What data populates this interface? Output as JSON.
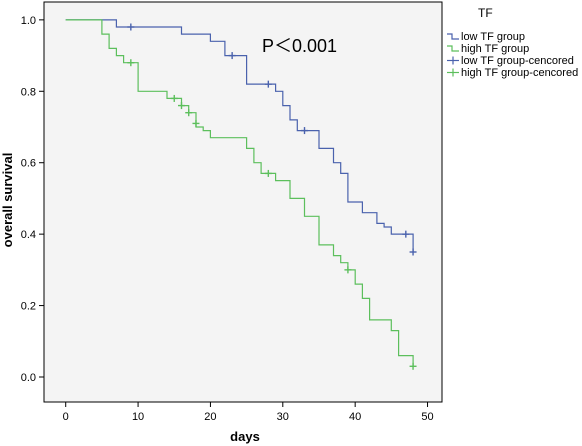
{
  "chart_data": {
    "type": "line",
    "step": true,
    "xlabel": "days",
    "ylabel": "overall survival",
    "xlim": [
      -3,
      52
    ],
    "ylim": [
      -0.07,
      1.05
    ],
    "xticks": [
      0,
      10,
      20,
      30,
      40,
      50
    ],
    "yticks": [
      0.0,
      0.2,
      0.4,
      0.6,
      0.8,
      1.0
    ],
    "ytick_labels": [
      "0.0",
      "0.2",
      "0.4",
      "0.6",
      "0.8",
      "1.0"
    ],
    "annotation": "P＜0.001",
    "legend": {
      "title": "TF",
      "placement": "top-right-outside",
      "entries": [
        "low TF group",
        "high TF group",
        "low TF group-cencored",
        "high TF group-cencored"
      ]
    },
    "series": [
      {
        "name": "low TF group",
        "color": "#4a62ad",
        "points": [
          [
            0,
            1.0
          ],
          [
            7,
            1.0
          ],
          [
            7,
            0.98
          ],
          [
            16,
            0.98
          ],
          [
            16,
            0.96
          ],
          [
            20,
            0.96
          ],
          [
            20,
            0.94
          ],
          [
            22,
            0.94
          ],
          [
            22,
            0.9
          ],
          [
            25,
            0.9
          ],
          [
            25,
            0.82
          ],
          [
            29,
            0.82
          ],
          [
            29,
            0.8
          ],
          [
            30,
            0.8
          ],
          [
            30,
            0.76
          ],
          [
            31,
            0.76
          ],
          [
            31,
            0.72
          ],
          [
            32,
            0.72
          ],
          [
            32,
            0.69
          ],
          [
            35,
            0.69
          ],
          [
            35,
            0.64
          ],
          [
            37,
            0.64
          ],
          [
            37,
            0.6
          ],
          [
            38,
            0.6
          ],
          [
            38,
            0.57
          ],
          [
            39,
            0.57
          ],
          [
            39,
            0.49
          ],
          [
            41,
            0.49
          ],
          [
            41,
            0.46
          ],
          [
            43,
            0.46
          ],
          [
            43,
            0.43
          ],
          [
            44,
            0.43
          ],
          [
            44,
            0.42
          ],
          [
            45,
            0.42
          ],
          [
            45,
            0.4
          ],
          [
            48,
            0.4
          ],
          [
            48,
            0.35
          ]
        ],
        "censored": [
          [
            9,
            0.98
          ],
          [
            23,
            0.9
          ],
          [
            28,
            0.82
          ],
          [
            33,
            0.69
          ],
          [
            47,
            0.4
          ],
          [
            48,
            0.35
          ]
        ]
      },
      {
        "name": "high TF group",
        "color": "#5cbf5c",
        "points": [
          [
            0,
            1.0
          ],
          [
            5,
            1.0
          ],
          [
            5,
            0.96
          ],
          [
            6,
            0.96
          ],
          [
            6,
            0.92
          ],
          [
            7,
            0.92
          ],
          [
            7,
            0.9
          ],
          [
            8,
            0.9
          ],
          [
            8,
            0.88
          ],
          [
            10,
            0.88
          ],
          [
            10,
            0.8
          ],
          [
            14,
            0.8
          ],
          [
            14,
            0.78
          ],
          [
            16,
            0.78
          ],
          [
            16,
            0.76
          ],
          [
            17,
            0.76
          ],
          [
            17,
            0.74
          ],
          [
            18,
            0.74
          ],
          [
            18,
            0.7
          ],
          [
            19,
            0.7
          ],
          [
            19,
            0.69
          ],
          [
            20,
            0.69
          ],
          [
            20,
            0.67
          ],
          [
            25,
            0.67
          ],
          [
            25,
            0.64
          ],
          [
            26,
            0.64
          ],
          [
            26,
            0.6
          ],
          [
            27,
            0.6
          ],
          [
            27,
            0.57
          ],
          [
            29,
            0.57
          ],
          [
            29,
            0.55
          ],
          [
            31,
            0.55
          ],
          [
            31,
            0.5
          ],
          [
            33,
            0.5
          ],
          [
            33,
            0.45
          ],
          [
            35,
            0.45
          ],
          [
            35,
            0.37
          ],
          [
            37,
            0.37
          ],
          [
            37,
            0.34
          ],
          [
            38,
            0.34
          ],
          [
            38,
            0.32
          ],
          [
            39,
            0.32
          ],
          [
            39,
            0.3
          ],
          [
            40,
            0.3
          ],
          [
            40,
            0.26
          ],
          [
            41,
            0.26
          ],
          [
            41,
            0.22
          ],
          [
            42,
            0.22
          ],
          [
            42,
            0.16
          ],
          [
            45,
            0.16
          ],
          [
            45,
            0.13
          ],
          [
            46,
            0.13
          ],
          [
            46,
            0.06
          ],
          [
            48,
            0.06
          ],
          [
            48,
            0.03
          ]
        ],
        "censored": [
          [
            9,
            0.88
          ],
          [
            15,
            0.78
          ],
          [
            16,
            0.76
          ],
          [
            17,
            0.74
          ],
          [
            18,
            0.71
          ],
          [
            28,
            0.57
          ],
          [
            39,
            0.3
          ],
          [
            48,
            0.03
          ]
        ]
      }
    ]
  }
}
